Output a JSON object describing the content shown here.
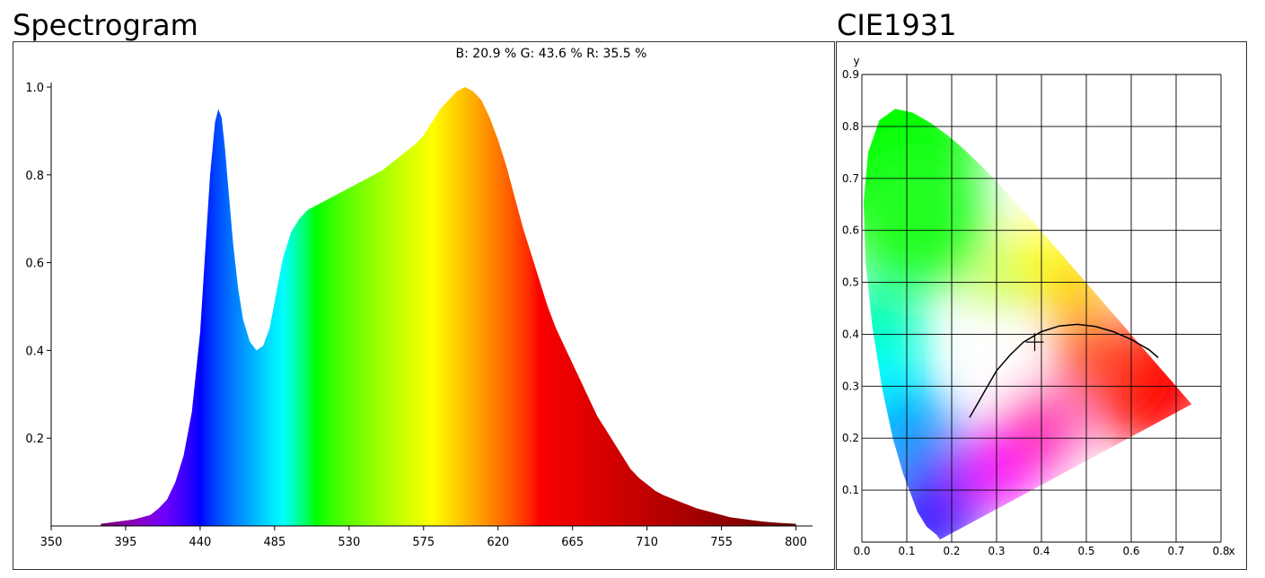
{
  "titles": {
    "spectrogram": "Spectrogram",
    "cie": "CIE1931"
  },
  "chart_data": [
    {
      "type": "area",
      "title": "Spectrogram",
      "summary": "B: 20.9 %   G: 43.6 %   R: 35.5 %",
      "xlabel": "",
      "ylabel": "",
      "xlim": [
        350,
        810
      ],
      "ylim": [
        0,
        1.0
      ],
      "x_ticks": [
        350,
        395,
        440,
        485,
        530,
        575,
        620,
        665,
        710,
        755,
        800
      ],
      "y_ticks": [
        {
          "value": 0.2,
          "label": "0.2"
        },
        {
          "value": 0.4,
          "label": "0.4"
        },
        {
          "value": 0.6,
          "label": "0.6"
        },
        {
          "value": 0.8,
          "label": "0.8"
        },
        {
          "value": 1.0,
          "label": "1.0"
        }
      ],
      "grid": false,
      "series": [
        {
          "x": [
            380,
            390,
            400,
            410,
            415,
            420,
            425,
            430,
            435,
            440,
            443,
            446,
            449,
            451,
            453,
            455,
            457,
            460,
            463,
            466,
            470,
            474,
            478,
            482,
            486,
            490,
            495,
            500,
            505,
            510,
            515,
            520,
            525,
            530,
            540,
            550,
            560,
            570,
            575,
            580,
            585,
            590,
            595,
            600,
            605,
            610,
            615,
            620,
            625,
            630,
            635,
            640,
            645,
            650,
            655,
            660,
            665,
            670,
            675,
            680,
            685,
            690,
            695,
            700,
            705,
            710,
            715,
            720,
            730,
            740,
            750,
            760,
            770,
            780,
            790,
            800
          ],
          "values": [
            0.005,
            0.01,
            0.015,
            0.025,
            0.04,
            0.06,
            0.1,
            0.16,
            0.26,
            0.44,
            0.62,
            0.8,
            0.92,
            0.95,
            0.93,
            0.86,
            0.77,
            0.64,
            0.54,
            0.47,
            0.42,
            0.4,
            0.41,
            0.45,
            0.53,
            0.61,
            0.67,
            0.7,
            0.72,
            0.73,
            0.74,
            0.75,
            0.76,
            0.77,
            0.79,
            0.81,
            0.84,
            0.87,
            0.89,
            0.92,
            0.95,
            0.97,
            0.99,
            1.0,
            0.99,
            0.97,
            0.93,
            0.88,
            0.82,
            0.75,
            0.68,
            0.62,
            0.56,
            0.5,
            0.45,
            0.41,
            0.37,
            0.33,
            0.29,
            0.25,
            0.22,
            0.19,
            0.16,
            0.13,
            0.11,
            0.095,
            0.08,
            0.07,
            0.055,
            0.04,
            0.03,
            0.02,
            0.015,
            0.01,
            0.007,
            0.005
          ]
        }
      ]
    },
    {
      "type": "scatter",
      "title": "CIE1931",
      "xlabel": "x",
      "ylabel": "y",
      "xlim": [
        0,
        0.8
      ],
      "ylim": [
        0,
        0.9
      ],
      "x_ticks": [
        "0.0",
        "0.1",
        "0.2",
        "0.3",
        "0.4",
        "0.5",
        "0.6",
        "0.7",
        "0.8"
      ],
      "y_ticks": [
        "0.1",
        "0.2",
        "0.3",
        "0.4",
        "0.5",
        "0.6",
        "0.7",
        "0.8",
        "0.9"
      ],
      "grid": true,
      "gamut_locus": {
        "x": [
          0.1741,
          0.1703,
          0.1666,
          0.144,
          0.1241,
          0.0913,
          0.0687,
          0.0454,
          0.0235,
          0.0082,
          0.0039,
          0.0139,
          0.0389,
          0.0743,
          0.1142,
          0.1547,
          0.1929,
          0.2296,
          0.2658,
          0.3016,
          0.3373,
          0.3731,
          0.4087,
          0.4441,
          0.4788,
          0.5125,
          0.5448,
          0.5752,
          0.6029,
          0.627,
          0.6482,
          0.6658,
          0.6915,
          0.7079,
          0.7347
        ],
        "y": [
          0.005,
          0.0089,
          0.0138,
          0.0297,
          0.0578,
          0.1327,
          0.2007,
          0.295,
          0.4127,
          0.5384,
          0.6548,
          0.7502,
          0.812,
          0.8338,
          0.8262,
          0.8059,
          0.7816,
          0.7543,
          0.7243,
          0.6923,
          0.6589,
          0.6245,
          0.5896,
          0.5547,
          0.5202,
          0.4866,
          0.4544,
          0.4242,
          0.3965,
          0.3725,
          0.3514,
          0.334,
          0.3083,
          0.292,
          0.2653
        ]
      },
      "planckian_locus": {
        "x": [
          0.24,
          0.26,
          0.28,
          0.3,
          0.33,
          0.36,
          0.4,
          0.44,
          0.48,
          0.52,
          0.56,
          0.6,
          0.64,
          0.66
        ],
        "y": [
          0.24,
          0.27,
          0.3,
          0.33,
          0.36,
          0.385,
          0.405,
          0.416,
          0.419,
          0.415,
          0.405,
          0.39,
          0.37,
          0.355
        ]
      },
      "point": {
        "x": 0.385,
        "y": 0.385
      }
    }
  ]
}
